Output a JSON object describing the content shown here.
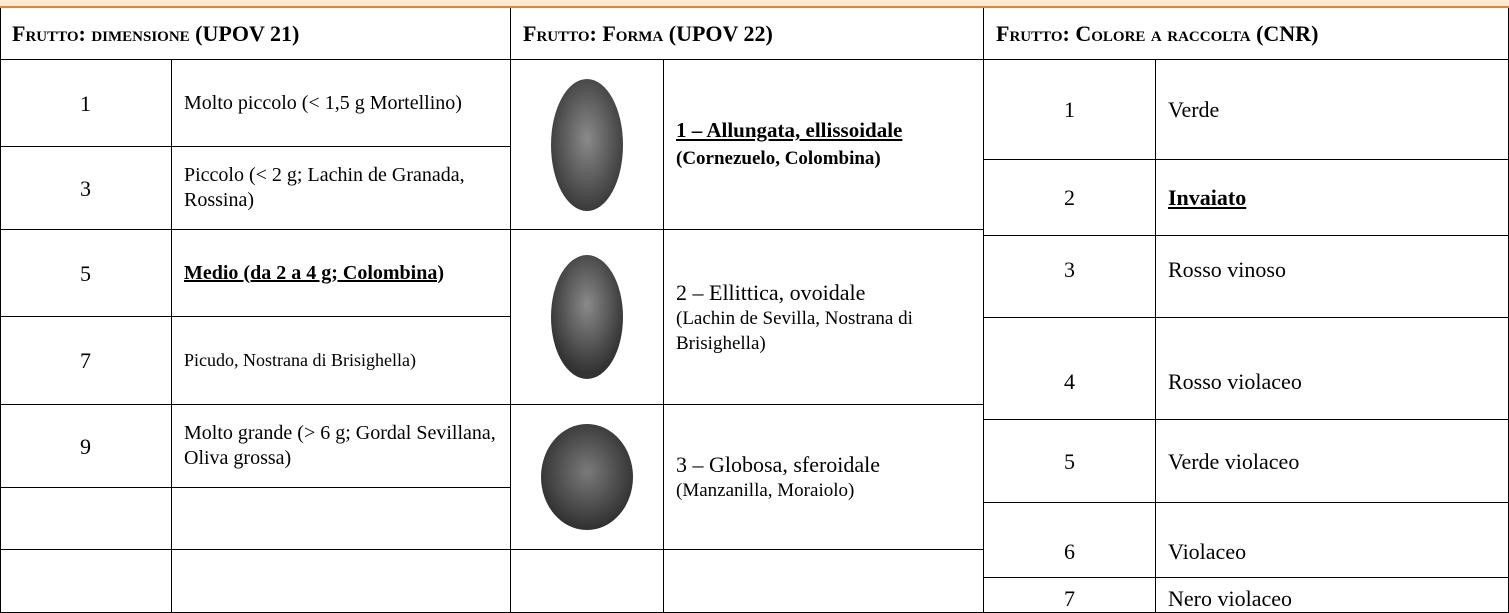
{
  "header": {
    "size": "Frutto: dimensione (UPOV 21)",
    "shape": "Frutto: Forma (UPOV 22)",
    "color": "Frutto: Colore a raccolta (CNR)"
  },
  "size_rows": [
    {
      "class": "1",
      "description": "Molto piccolo (< 1,5 g Mortellino)"
    },
    {
      "class": "3",
      "description": "Piccolo (< 2 g; Lachin de Granada, Rossina)"
    },
    {
      "class": "5",
      "description": "Medio (da 2 a 4 g; Colombina)"
    },
    {
      "class": "7",
      "description": "Picudo, Nostrana di Brisighella)"
    },
    {
      "class": "9",
      "description": "Molto grande (> 6 g; Gordal Sevillana, Oliva grossa)"
    }
  ],
  "shape_rows": [
    {
      "name": "1 – Allungata, ellissoidale",
      "examples": "(Cornezuelo, Colombina)"
    },
    {
      "name": "2 – Ellittica, ovoidale",
      "examples": "(Lachin de Sevilla, Nostrana di Brisighella)"
    },
    {
      "name": "3 – Globosa, sferoidale",
      "examples": "(Manzanilla, Moraiolo)"
    }
  ],
  "color_rows": [
    {
      "class": "1",
      "name": "Verde"
    },
    {
      "class": "2",
      "name": "Invaiato"
    },
    {
      "class": "3",
      "name": "Rosso vinoso"
    },
    {
      "class": "4",
      "name": "Rosso violaceo"
    },
    {
      "class": "5",
      "name": "Verde violaceo"
    },
    {
      "class": "6",
      "name": "Violaceo"
    },
    {
      "class": "7",
      "name": "Nero violaceo"
    }
  ]
}
